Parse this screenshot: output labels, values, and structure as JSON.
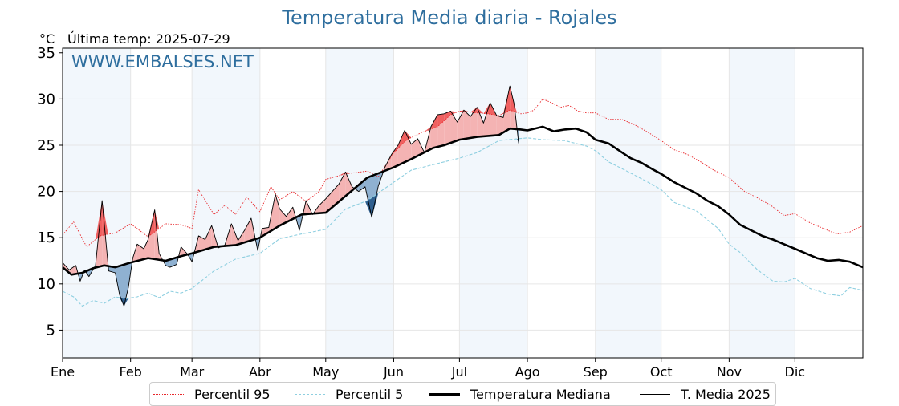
{
  "title": "Temperatura Media diaria - Rojales",
  "unit_label": "°C",
  "last_temp_label": "Última temp: 2025-07-29",
  "watermark": "WWW.EMBALSES.NET",
  "legend": [
    {
      "key": "p95",
      "label": "Percentil 95",
      "color": "#e8262a",
      "style": "dotted"
    },
    {
      "key": "p5",
      "label": "Percentil 5",
      "color": "#8ecfe0",
      "style": "dashed"
    },
    {
      "key": "median",
      "label": "Temperatura Mediana",
      "color": "#000000",
      "style": "solid-thick"
    },
    {
      "key": "y2025",
      "label": "T. Media 2025",
      "color": "#000000",
      "style": "solid-thin"
    }
  ],
  "colors": {
    "above": "#f4b3b3",
    "above_p95": "#f06060",
    "below": "#8fb1d1",
    "below_p5": "#2f5f8f",
    "month_shade": "#f2f7fc"
  },
  "chart_data": {
    "type": "line",
    "title": "Temperatura Media diaria - Rojales",
    "ylabel": "°C",
    "xlabel": "",
    "ylim": [
      2,
      35.5
    ],
    "xlim": [
      1,
      366
    ],
    "yticks": [
      5,
      10,
      15,
      20,
      25,
      30
    ],
    "y_top_label": 35,
    "months": [
      "Ene",
      "Feb",
      "Mar",
      "Abr",
      "May",
      "Jun",
      "Jul",
      "Ago",
      "Sep",
      "Oct",
      "Nov",
      "Dic"
    ],
    "month_start_days": [
      1,
      32,
      60,
      91,
      121,
      152,
      182,
      213,
      244,
      274,
      305,
      335
    ],
    "grid": true,
    "legend_position": "bottom-center",
    "series": [
      {
        "name": "Percentil 95",
        "key": "p95",
        "x": [
          1,
          6,
          12,
          18,
          25,
          32,
          40,
          48,
          55,
          60,
          63,
          70,
          75,
          80,
          85,
          91,
          96,
          100,
          106,
          112,
          118,
          121,
          130,
          140,
          145,
          152,
          158,
          165,
          172,
          178,
          182,
          190,
          195,
          200,
          205,
          210,
          213,
          216,
          220,
          224,
          228,
          232,
          236,
          240,
          244,
          250,
          256,
          262,
          268,
          274,
          280,
          286,
          292,
          298,
          305,
          312,
          318,
          324,
          330,
          335,
          342,
          348,
          354,
          360,
          366
        ],
        "y": [
          15.3,
          16.7,
          14.0,
          15.2,
          15.5,
          16.5,
          15.1,
          16.5,
          16.4,
          16.0,
          20.2,
          17.5,
          18.5,
          17.5,
          19.4,
          17.8,
          20.5,
          19.1,
          20.0,
          18.9,
          20.0,
          21.3,
          21.9,
          22.2,
          21.6,
          24.2,
          25.6,
          26.4,
          27.0,
          28.3,
          28.7,
          28.5,
          28.4,
          28.2,
          28.8,
          28.4,
          28.5,
          28.8,
          30.0,
          29.6,
          29.1,
          29.3,
          28.7,
          28.5,
          28.5,
          27.8,
          27.8,
          27.2,
          26.4,
          25.5,
          24.5,
          24.0,
          23.2,
          22.3,
          21.5,
          20.0,
          19.3,
          18.5,
          17.4,
          17.6,
          16.6,
          16.0,
          15.4,
          15.6,
          16.3
        ]
      },
      {
        "name": "Percentil 5",
        "key": "p5",
        "x": [
          1,
          6,
          10,
          15,
          20,
          25,
          30,
          35,
          40,
          45,
          50,
          55,
          60,
          70,
          80,
          91,
          100,
          110,
          121,
          130,
          140,
          152,
          160,
          170,
          182,
          190,
          200,
          213,
          220,
          230,
          240,
          244,
          250,
          260,
          268,
          274,
          280,
          290,
          300,
          305,
          310,
          318,
          325,
          330,
          335,
          342,
          350,
          356,
          360,
          366
        ],
        "y": [
          9.2,
          8.6,
          7.6,
          8.2,
          7.9,
          8.6,
          8.4,
          8.6,
          9.0,
          8.5,
          9.2,
          9.0,
          9.5,
          11.4,
          12.7,
          13.3,
          14.9,
          15.4,
          15.9,
          18.1,
          19.0,
          21.0,
          22.3,
          22.9,
          23.6,
          24.2,
          25.5,
          25.8,
          25.6,
          25.5,
          24.9,
          24.4,
          23.2,
          22.0,
          21.0,
          20.2,
          18.8,
          17.9,
          16.0,
          14.3,
          13.4,
          11.5,
          10.3,
          10.2,
          10.6,
          9.5,
          8.9,
          8.7,
          9.6,
          9.3
        ]
      },
      {
        "name": "Temperatura Mediana",
        "key": "median",
        "x": [
          1,
          5,
          10,
          15,
          20,
          25,
          32,
          40,
          48,
          55,
          60,
          70,
          80,
          91,
          100,
          110,
          121,
          130,
          140,
          152,
          160,
          170,
          175,
          182,
          190,
          200,
          205,
          210,
          213,
          220,
          225,
          230,
          235,
          240,
          244,
          250,
          255,
          260,
          265,
          270,
          274,
          280,
          285,
          290,
          295,
          300,
          305,
          310,
          315,
          320,
          325,
          330,
          335,
          340,
          345,
          350,
          355,
          360,
          366
        ],
        "y": [
          11.8,
          11.0,
          11.2,
          11.7,
          12.0,
          11.8,
          12.3,
          12.8,
          12.5,
          13.0,
          13.3,
          14.0,
          14.2,
          15.0,
          16.3,
          17.5,
          17.7,
          19.5,
          21.5,
          22.6,
          23.5,
          24.7,
          25.0,
          25.6,
          25.9,
          26.1,
          26.8,
          26.7,
          26.6,
          27.0,
          26.5,
          26.7,
          26.8,
          26.4,
          25.6,
          25.2,
          24.4,
          23.6,
          23.1,
          22.4,
          21.9,
          21.0,
          20.4,
          19.8,
          19.0,
          18.4,
          17.5,
          16.4,
          15.8,
          15.2,
          14.8,
          14.3,
          13.8,
          13.3,
          12.8,
          12.5,
          12.6,
          12.4,
          11.8
        ]
      },
      {
        "name": "T. Media 2025",
        "key": "y2025",
        "x": [
          1,
          4,
          7,
          9,
          11,
          13,
          16,
          19,
          22,
          25,
          27,
          29,
          31,
          33,
          35,
          38,
          40,
          43,
          45,
          48,
          50,
          53,
          55,
          58,
          60,
          63,
          66,
          69,
          72,
          75,
          78,
          81,
          84,
          87,
          90,
          92,
          95,
          98,
          100,
          103,
          106,
          109,
          112,
          115,
          118,
          121,
          124,
          127,
          130,
          133,
          136,
          139,
          142,
          145,
          148,
          151,
          154,
          157,
          160,
          163,
          166,
          169,
          172,
          175,
          178,
          181,
          184,
          187,
          190,
          193,
          196,
          199,
          202,
          205,
          207,
          209
        ],
        "y": [
          12.3,
          11.5,
          12.0,
          10.3,
          11.5,
          10.8,
          12.0,
          19.0,
          11.4,
          11.2,
          8.8,
          7.6,
          9.6,
          12.8,
          14.3,
          13.8,
          14.8,
          18.0,
          13.3,
          12.0,
          11.8,
          12.1,
          14.0,
          13.2,
          12.4,
          15.2,
          14.8,
          16.3,
          13.9,
          14.2,
          16.5,
          14.7,
          15.8,
          17.1,
          13.6,
          16.0,
          16.1,
          19.7,
          18.1,
          17.3,
          18.3,
          15.8,
          19.0,
          17.5,
          18.5,
          19.2,
          20.0,
          20.8,
          22.1,
          20.5,
          20.0,
          20.5,
          17.2,
          20.6,
          22.6,
          24.0,
          25.0,
          26.6,
          25.1,
          25.7,
          24.2,
          27.0,
          28.3,
          28.4,
          28.7,
          27.5,
          28.8,
          28.1,
          29.1,
          27.4,
          29.6,
          28.2,
          28.0,
          31.4,
          29.4,
          25.2
        ]
      }
    ]
  }
}
